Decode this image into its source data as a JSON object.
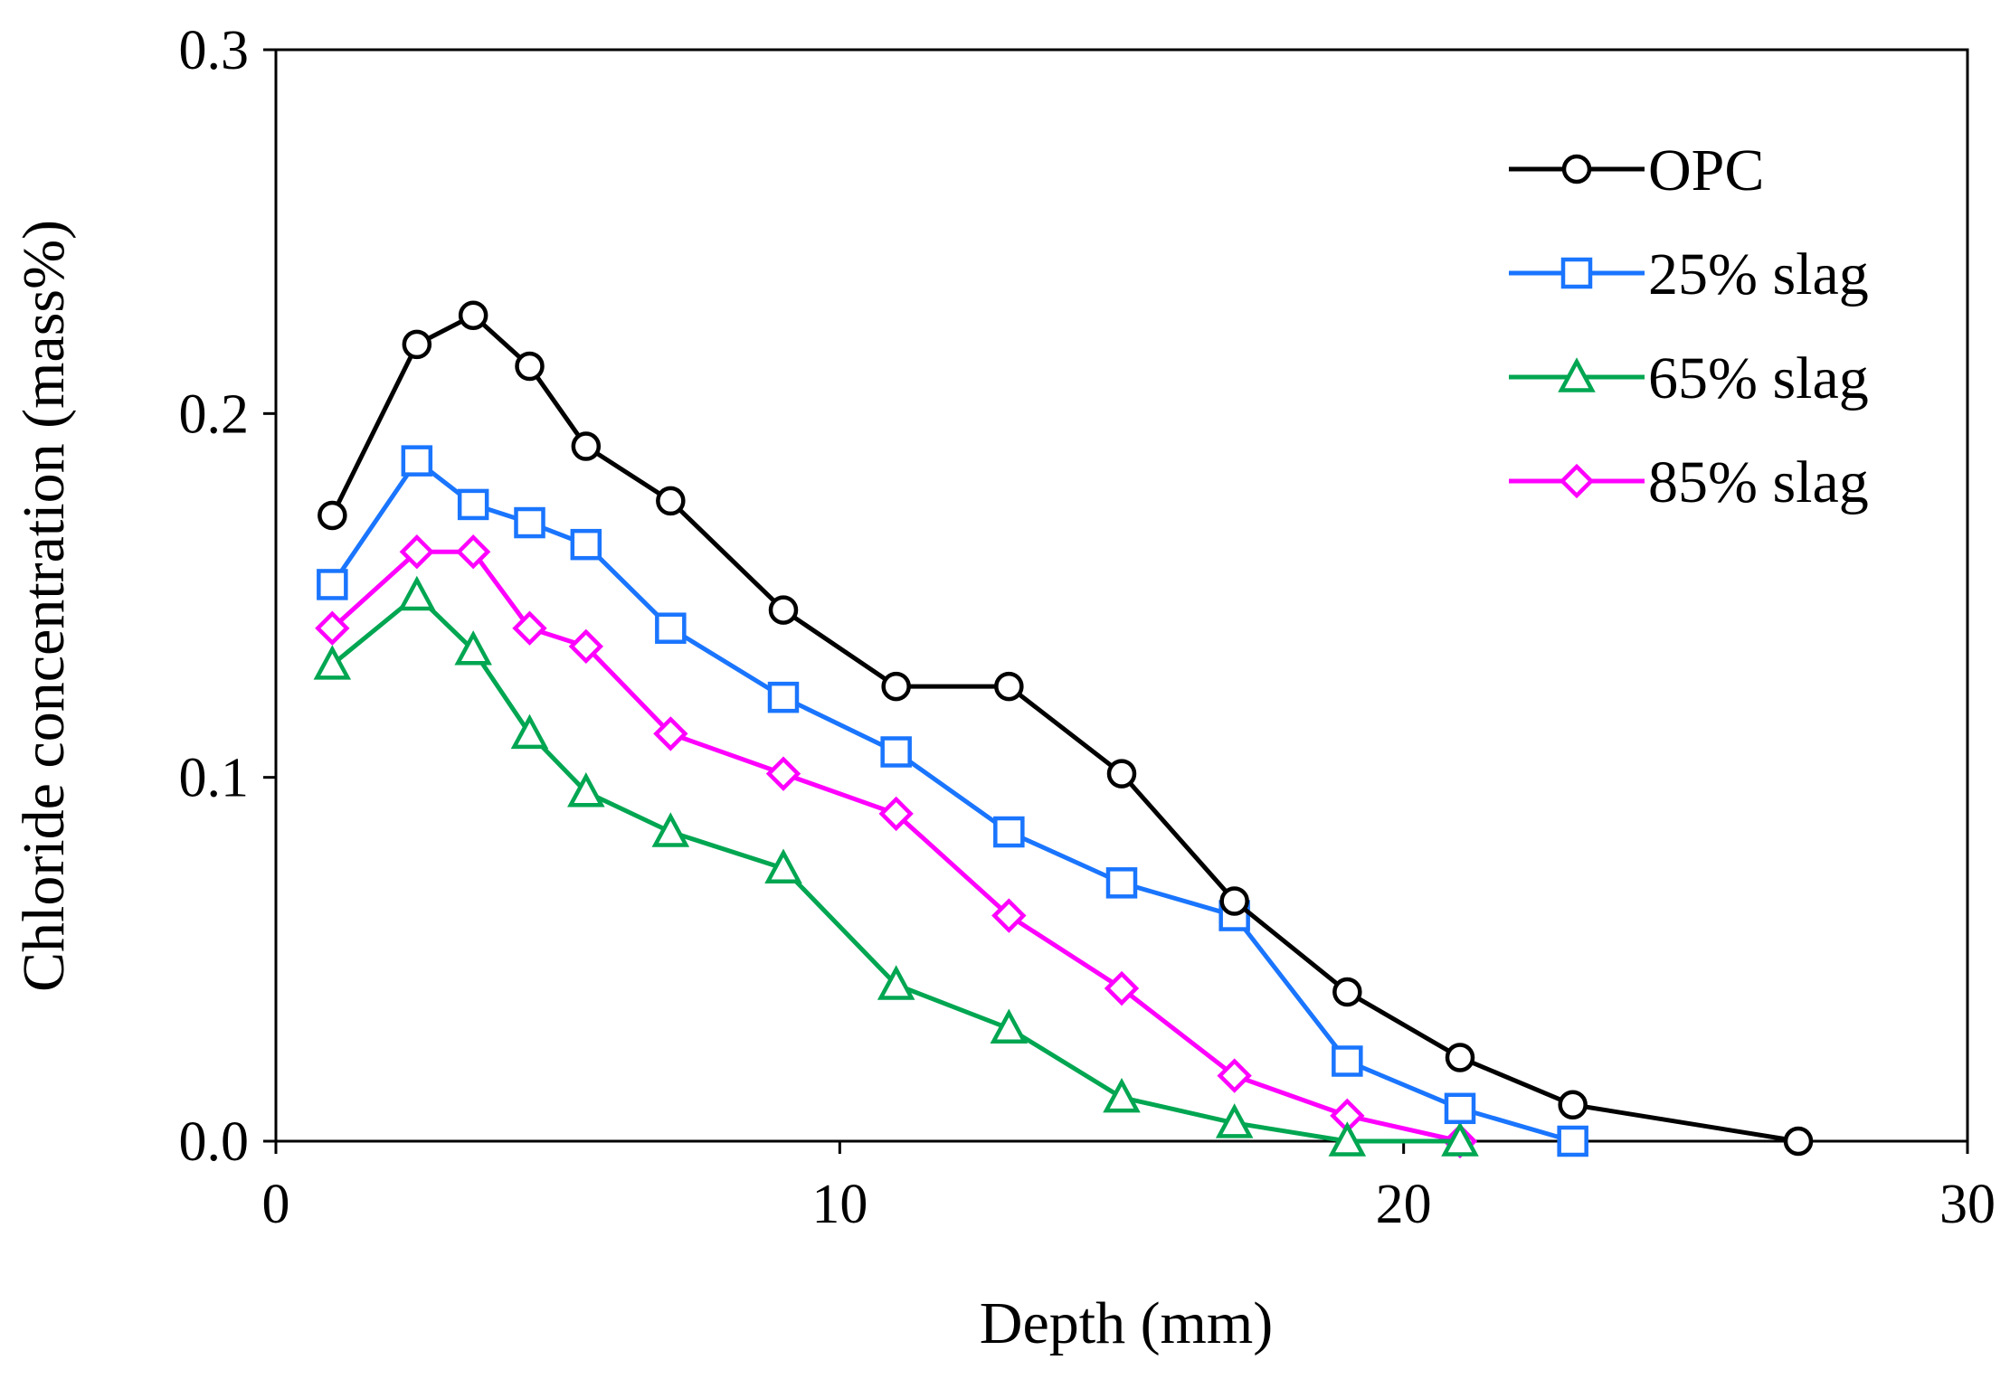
{
  "chart_data": {
    "type": "line",
    "title": "",
    "xlabel": "Depth (mm)",
    "ylabel": "Chloride concentration (mass%)",
    "xlim": [
      0,
      30
    ],
    "ylim": [
      0,
      0.3
    ],
    "xticks": [
      0,
      10,
      20,
      30
    ],
    "xtick_labels": [
      "0",
      "10",
      "20",
      "30"
    ],
    "yticks": [
      0,
      0.1,
      0.2,
      0.3
    ],
    "ytick_labels": [
      "0.0",
      "0.1",
      "0.2",
      "0.3"
    ],
    "grid": false,
    "legend_position": "top-right",
    "series": [
      {
        "name": "OPC",
        "color": "#000000",
        "marker": "circle",
        "x": [
          1,
          2.5,
          3.5,
          4.5,
          5.5,
          7,
          9,
          11,
          13,
          15,
          17,
          19,
          21,
          23,
          27
        ],
        "y": [
          0.172,
          0.219,
          0.227,
          0.213,
          0.191,
          0.176,
          0.146,
          0.125,
          0.125,
          0.101,
          0.066,
          0.041,
          0.023,
          0.01,
          0.0
        ]
      },
      {
        "name": "25% slag",
        "color": "#1a75ff",
        "marker": "square",
        "x": [
          1,
          2.5,
          3.5,
          4.5,
          5.5,
          7,
          9,
          11,
          13,
          15,
          17,
          19,
          21,
          23
        ],
        "y": [
          0.153,
          0.187,
          0.175,
          0.17,
          0.164,
          0.141,
          0.122,
          0.107,
          0.085,
          0.071,
          0.062,
          0.022,
          0.009,
          0.0
        ]
      },
      {
        "name": "65% slag",
        "color": "#00a651",
        "marker": "triangle",
        "x": [
          1,
          2.5,
          3.5,
          4.5,
          5.5,
          7,
          9,
          11,
          13,
          15,
          17,
          19,
          21
        ],
        "y": [
          0.131,
          0.15,
          0.135,
          0.112,
          0.096,
          0.085,
          0.075,
          0.043,
          0.031,
          0.012,
          0.005,
          0.0,
          0.0
        ]
      },
      {
        "name": "85% slag",
        "color": "#ff00ff",
        "marker": "diamond",
        "x": [
          1,
          2.5,
          3.5,
          4.5,
          5.5,
          7,
          9,
          11,
          13,
          15,
          17,
          19,
          21
        ],
        "y": [
          0.141,
          0.162,
          0.162,
          0.141,
          0.136,
          0.112,
          0.101,
          0.09,
          0.062,
          0.042,
          0.018,
          0.007,
          0.0
        ]
      }
    ]
  }
}
